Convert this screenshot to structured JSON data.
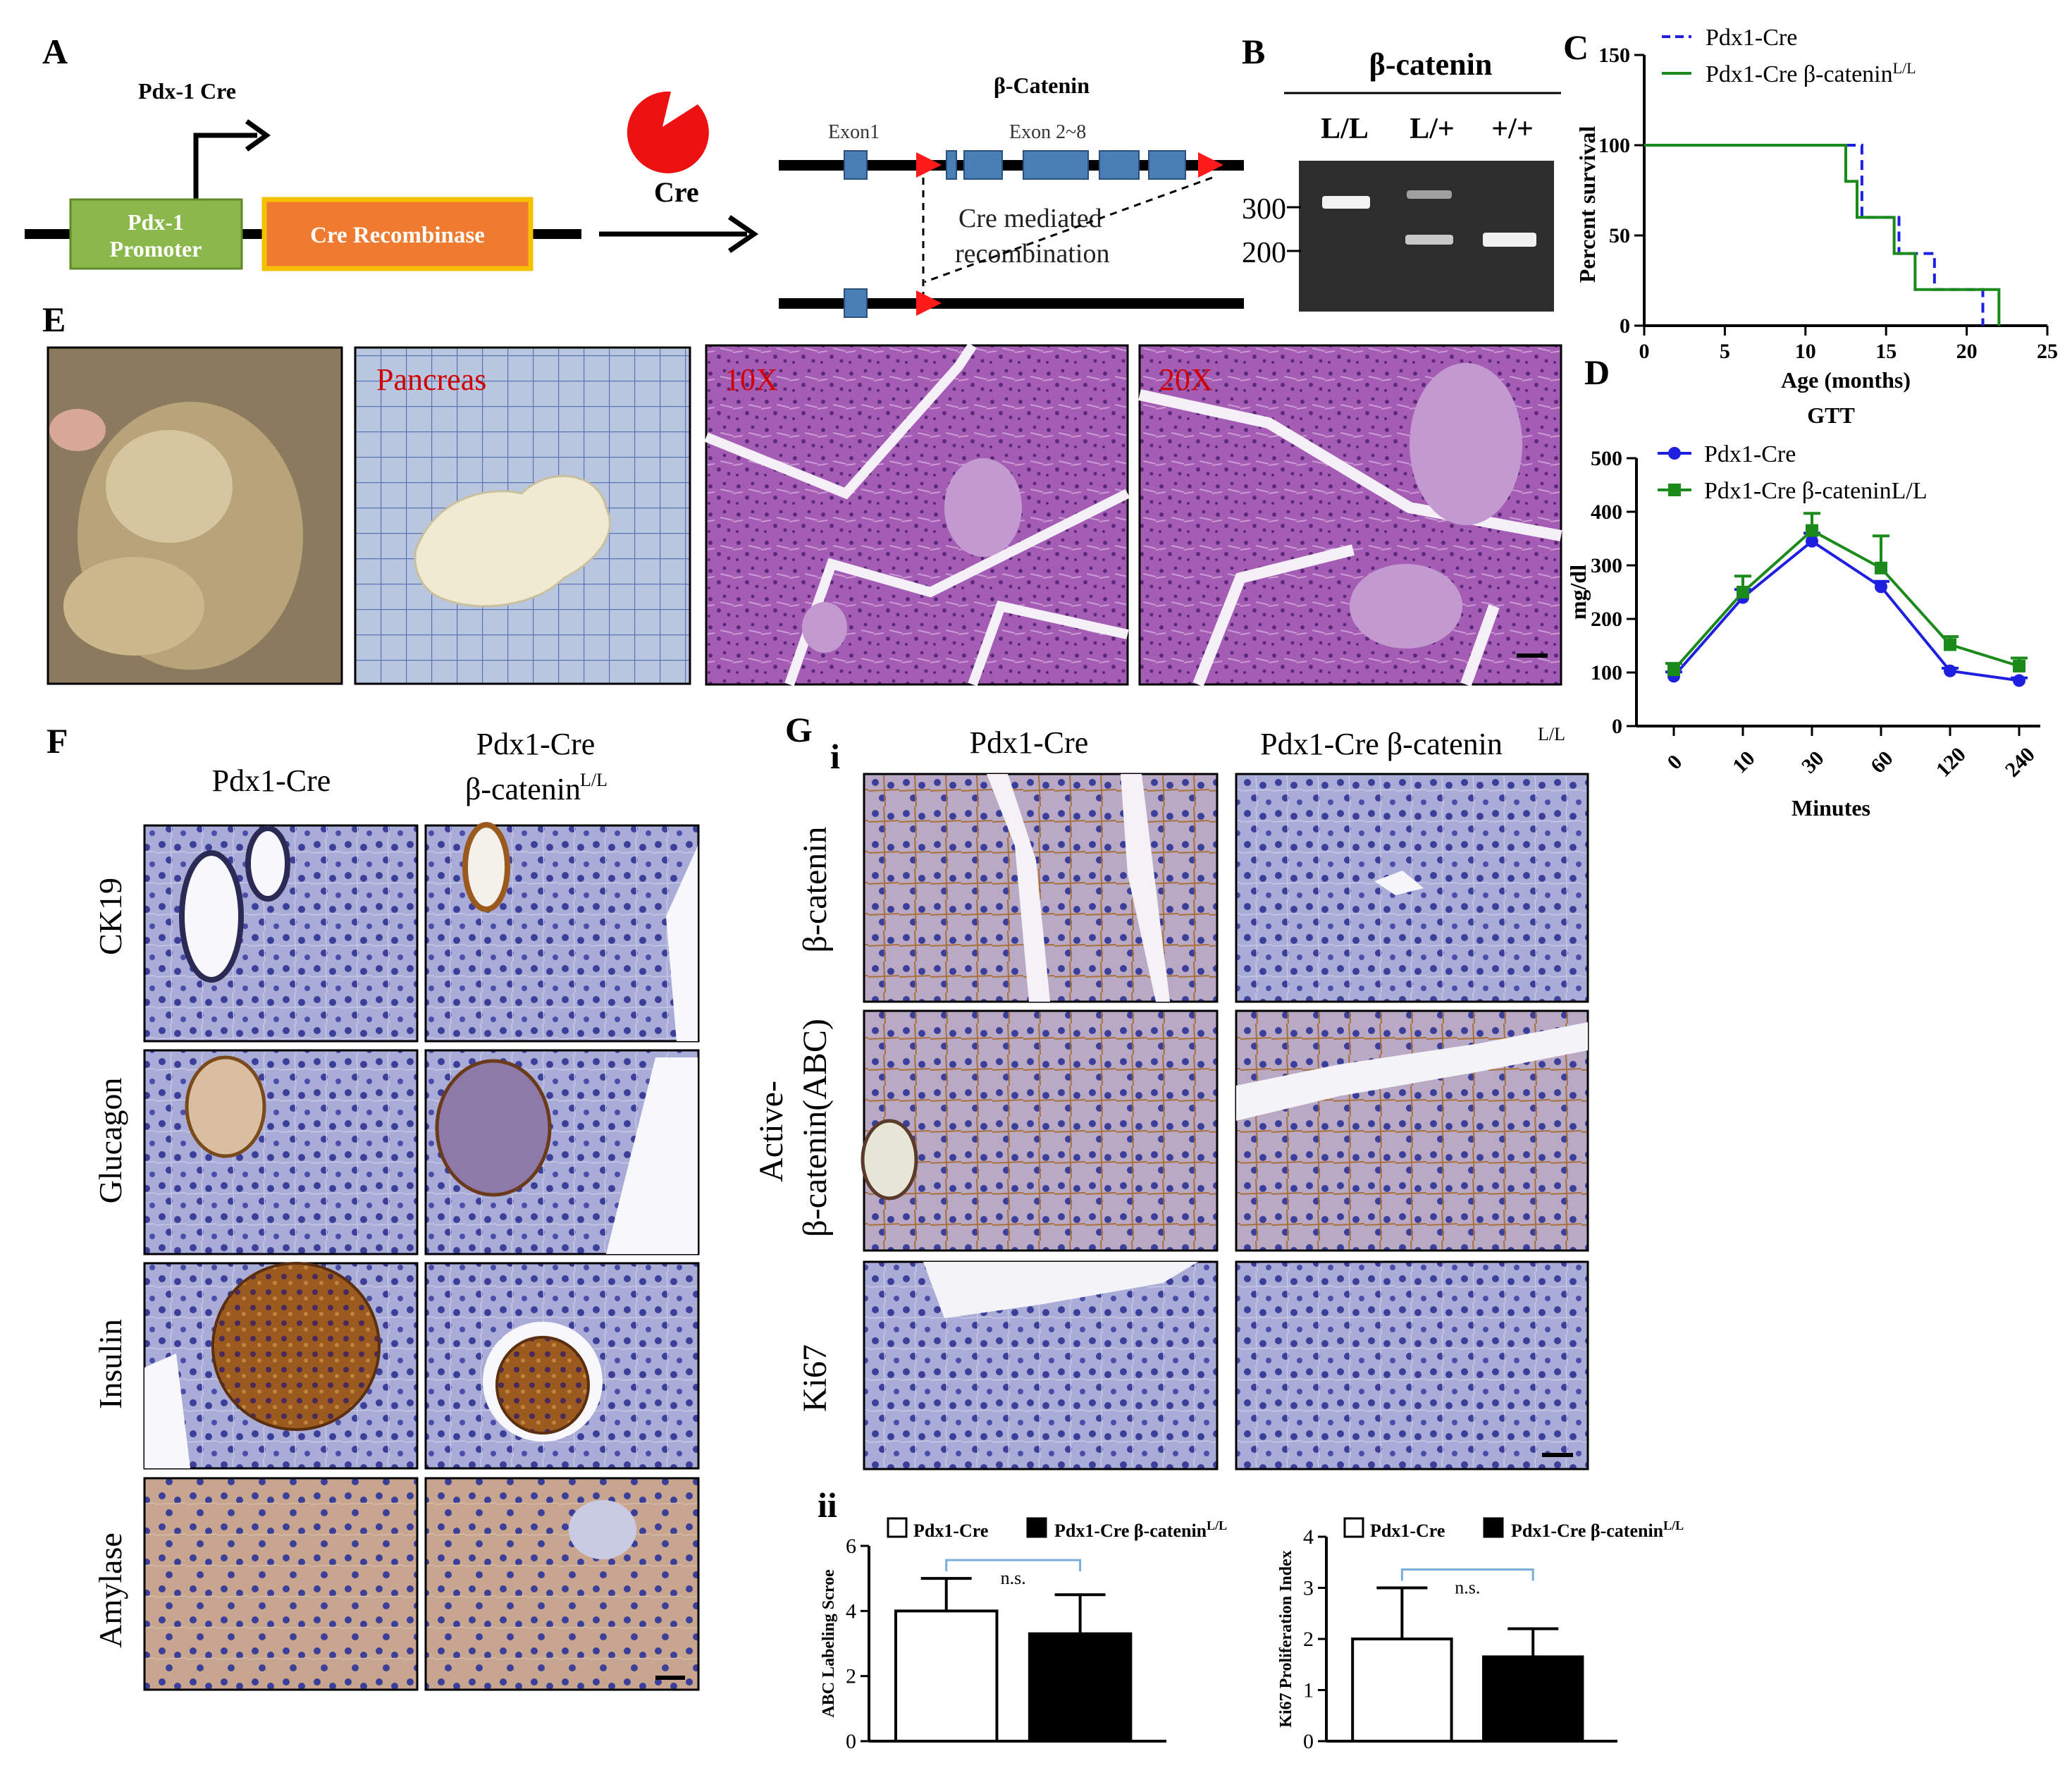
{
  "panel_letters": {
    "a": "A",
    "b": "B",
    "c": "C",
    "d": "D",
    "e": "E",
    "f": "F",
    "g": "G",
    "gi": "i",
    "gii": "ii"
  },
  "panelA": {
    "pdx_cre_title": "Pdx-1 Cre",
    "promoter_line1": "Pdx-1",
    "promoter_line2": "Promoter",
    "recombinase": "Cre Recombinase",
    "cre_label": "Cre",
    "beta_catenin_title": "β-Catenin",
    "exon1": "Exon1",
    "exon2_8": "Exon 2~8",
    "recomb_line1": "Cre  mediated",
    "recomb_line2": "recombination"
  },
  "panelB": {
    "title": "β-catenin",
    "lanes": [
      "L/L",
      "L/+",
      "+/+"
    ],
    "marker_300": "300",
    "marker_200": "200"
  },
  "panelE": {
    "pancreas_label": "Pancreas",
    "mag10": "10X",
    "mag20": "20X"
  },
  "panelF": {
    "col1": "Pdx1-Cre",
    "col2_line1": "Pdx1-Cre",
    "col2_line2": "β-catenin",
    "col2_sup": "L/L",
    "rows": [
      "CK19",
      "Glucagon",
      "Insulin",
      "Amylase"
    ]
  },
  "panelGi": {
    "col1": "Pdx1-Cre",
    "col2": "Pdx1-Cre  β-catenin",
    "col2_sup": "L/L",
    "row1": "β-catenin",
    "row2_line1": "Active-",
    "row2_line2": "β-catenin(ABC)",
    "row3": "Ki67"
  },
  "colors": {
    "pdx1_cre": "#1f1fe0",
    "pdx1_cre_bcat": "#1a8a1a",
    "promoter_fill": "#8ab84a",
    "recombinase_fill": "#ee7b2f",
    "recombinase_border": "#f5c000",
    "exon_fill": "#4a7fb5",
    "loxp": "#ff1a1a"
  },
  "chart_data": [
    {
      "id": "survival",
      "type": "line",
      "subtype": "kaplan-meier step",
      "xlabel": "Age (months)",
      "ylabel": "Percent survival",
      "xlim": [
        0,
        25
      ],
      "ylim": [
        0,
        150
      ],
      "xticks": [
        0,
        5,
        10,
        15,
        20,
        25
      ],
      "yticks": [
        0,
        50,
        100,
        150
      ],
      "legend_placement": "top",
      "series": [
        {
          "name": "Pdx1-Cre",
          "legend_sup": "",
          "style": "dashed",
          "color": "#1f1fe0",
          "x": [
            0,
            13.5,
            13.5,
            15.8,
            15.8,
            18,
            18,
            21,
            21
          ],
          "y": [
            100,
            100,
            60,
            60,
            40,
            40,
            20,
            20,
            0
          ]
        },
        {
          "name": "Pdx1-Cre β-catenin",
          "legend_sup": "L/L",
          "style": "solid",
          "color": "#1a8a1a",
          "x": [
            0,
            12.5,
            12.5,
            13.2,
            13.2,
            15.5,
            15.5,
            16.8,
            16.8,
            22,
            22
          ],
          "y": [
            100,
            100,
            80,
            80,
            60,
            60,
            40,
            40,
            20,
            20,
            0
          ]
        }
      ]
    },
    {
      "id": "gtt",
      "type": "line",
      "title": "GTT",
      "xlabel": "Minutes",
      "ylabel": "mg/dl",
      "categories": [
        "0",
        "10",
        "30",
        "60",
        "120",
        "240"
      ],
      "ylim": [
        0,
        500
      ],
      "yticks": [
        0,
        100,
        200,
        300,
        400,
        500
      ],
      "legend_placement": "top",
      "series": [
        {
          "name": "Pdx1-Cre",
          "marker": "circle",
          "color": "#1f1fe0",
          "values": [
            93,
            240,
            345,
            260,
            103,
            85
          ],
          "errors": [
            8,
            15,
            15,
            10,
            5,
            5
          ]
        },
        {
          "name": "Pdx1-Cre β-cateninL/L",
          "marker": "square",
          "color": "#1a8a1a",
          "values": [
            105,
            250,
            365,
            295,
            152,
            112
          ],
          "errors": [
            12,
            30,
            32,
            60,
            15,
            15
          ]
        }
      ]
    },
    {
      "id": "abc",
      "type": "bar",
      "ylabel": "ABC Labeling Scroe",
      "categories": [
        "Pdx1-Cre",
        "Pdx1-Cre β-catenin"
      ],
      "legend_sup": "L/L",
      "values": [
        4.0,
        3.3
      ],
      "errors": [
        1.0,
        1.2
      ],
      "ylim": [
        0,
        6
      ],
      "yticks": [
        0,
        2,
        4,
        6
      ],
      "annotation": "n.s.",
      "legend_placement": "top"
    },
    {
      "id": "ki67",
      "type": "bar",
      "ylabel": "Ki67 Proliferation Index",
      "categories": [
        "Pdx1-Cre",
        "Pdx1-Cre β-catenin"
      ],
      "legend_sup": "L/L",
      "values": [
        2.0,
        1.65
      ],
      "errors": [
        1.0,
        0.55
      ],
      "ylim": [
        0,
        4
      ],
      "yticks": [
        0,
        1,
        2,
        3,
        4
      ],
      "annotation": "n.s.",
      "legend_placement": "top"
    }
  ]
}
